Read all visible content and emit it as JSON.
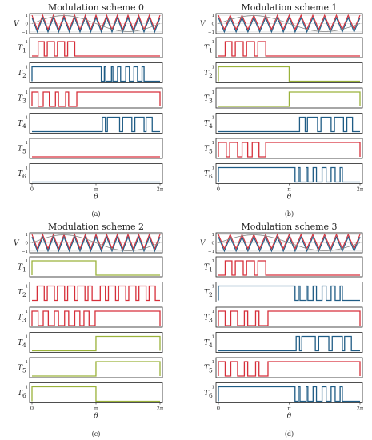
{
  "figure_captions": [
    "(a)",
    "(b)",
    "(c)",
    "(d)"
  ],
  "chart_data": [
    {
      "type": "line",
      "title": "Modulation scheme 0",
      "xlabel": "θ",
      "x_ticks": [
        "0",
        "π",
        "2π"
      ],
      "xlim": [
        0,
        6.283
      ],
      "v_ylabel": "V",
      "v_ticks": [
        "1",
        "0",
        "−1"
      ],
      "ylim": [
        -1.2,
        1.2
      ],
      "carrier_colors": [
        "#d62f3a",
        "#1f5c85"
      ],
      "signals": [
        {
          "label": "T1",
          "color": "#d62f3a",
          "type": "pwm",
          "pulses": [
            [
              0.3,
              0.6
            ],
            [
              0.75,
              1.1
            ],
            [
              1.25,
              1.6
            ],
            [
              1.75,
              2.1
            ]
          ]
        },
        {
          "label": "T2",
          "color": "#1f5c85",
          "type": "pwm",
          "pulses": [
            [
              0.0,
              3.4
            ],
            [
              3.55,
              3.62
            ],
            [
              3.9,
              3.97
            ],
            [
              4.2,
              4.35
            ],
            [
              4.6,
              4.78
            ],
            [
              5.0,
              5.18
            ],
            [
              5.4,
              5.5
            ]
          ]
        },
        {
          "label": "T3",
          "color": "#d62f3a",
          "type": "pwm",
          "pulses": [
            [
              0.0,
              0.3
            ],
            [
              0.55,
              0.85
            ],
            [
              1.15,
              1.3
            ],
            [
              1.65,
              1.8
            ],
            [
              2.2,
              6.283
            ]
          ]
        },
        {
          "label": "T4",
          "color": "#1f5c85",
          "type": "pwm",
          "pulses": [
            [
              3.45,
              3.6
            ],
            [
              3.7,
              4.3
            ],
            [
              4.45,
              4.9
            ],
            [
              5.05,
              5.5
            ],
            [
              5.6,
              5.9
            ]
          ]
        },
        {
          "label": "T5",
          "color": "#d62f3a",
          "type": "pwm",
          "pulses": []
        },
        {
          "label": "T6",
          "color": "#1f5c85",
          "type": "pwm",
          "pulses": []
        }
      ]
    },
    {
      "type": "line",
      "title": "Modulation scheme 1",
      "xlabel": "θ",
      "x_ticks": [
        "0",
        "π",
        "2π"
      ],
      "xlim": [
        0,
        6.283
      ],
      "v_ylabel": "V",
      "v_ticks": [
        "1",
        "0",
        "−1"
      ],
      "ylim": [
        -1.2,
        1.2
      ],
      "carrier_colors": [
        "#d62f3a",
        "#1f5c85"
      ],
      "signals": [
        {
          "label": "T1",
          "color": "#d62f3a",
          "type": "pwm",
          "pulses": [
            [
              0.3,
              0.6
            ],
            [
              0.75,
              1.1
            ],
            [
              1.25,
              1.6
            ],
            [
              1.75,
              2.1
            ]
          ]
        },
        {
          "label": "T2",
          "color": "#9ab23a",
          "type": "pwm",
          "pulses": [
            [
              0.0,
              3.14
            ]
          ]
        },
        {
          "label": "T3",
          "color": "#9ab23a",
          "type": "pwm",
          "pulses": [
            [
              3.14,
              6.283
            ]
          ]
        },
        {
          "label": "T4",
          "color": "#1f5c85",
          "type": "pwm",
          "pulses": [
            [
              3.6,
              3.85
            ],
            [
              3.95,
              4.4
            ],
            [
              4.55,
              5.0
            ],
            [
              5.15,
              5.55
            ],
            [
              5.7,
              5.95
            ]
          ]
        },
        {
          "label": "T5",
          "color": "#d62f3a",
          "type": "pwm",
          "pulses": [
            [
              0.0,
              0.35
            ],
            [
              0.5,
              0.85
            ],
            [
              1.05,
              1.3
            ],
            [
              1.5,
              1.8
            ],
            [
              2.1,
              6.283
            ]
          ]
        },
        {
          "label": "T6",
          "color": "#1f5c85",
          "type": "pwm",
          "pulses": [
            [
              0.0,
              3.4
            ],
            [
              3.55,
              3.62
            ],
            [
              3.9,
              3.97
            ],
            [
              4.2,
              4.35
            ],
            [
              4.6,
              4.78
            ],
            [
              5.0,
              5.18
            ],
            [
              5.4,
              5.5
            ]
          ]
        }
      ]
    },
    {
      "type": "line",
      "title": "Modulation scheme 2",
      "xlabel": "θ",
      "x_ticks": [
        "0",
        "π",
        "2π"
      ],
      "xlim": [
        0,
        6.283
      ],
      "v_ylabel": "V",
      "v_ticks": [
        "1",
        "0",
        "−1"
      ],
      "ylim": [
        -1.2,
        1.2
      ],
      "carrier_colors": [
        "#d62f3a",
        "#1f5c85"
      ],
      "signals": [
        {
          "label": "T1",
          "color": "#9ab23a",
          "type": "pwm",
          "pulses": [
            [
              0.0,
              3.14
            ]
          ]
        },
        {
          "label": "T2",
          "color": "#d62f3a",
          "type": "pwm",
          "pulses": [
            [
              0.25,
              0.6
            ],
            [
              0.75,
              1.1
            ],
            [
              1.25,
              1.6
            ],
            [
              1.75,
              2.1
            ],
            [
              2.25,
              2.6
            ],
            [
              2.75,
              2.95
            ],
            [
              3.35,
              3.6
            ],
            [
              3.75,
              4.1
            ],
            [
              4.25,
              4.6
            ],
            [
              4.75,
              5.1
            ],
            [
              5.25,
              5.6
            ],
            [
              5.75,
              6.05
            ]
          ]
        },
        {
          "label": "T3",
          "color": "#d62f3a",
          "type": "pwm",
          "pulses": [
            [
              0.0,
              0.3
            ],
            [
              0.55,
              0.8
            ],
            [
              1.1,
              1.3
            ],
            [
              1.6,
              1.8
            ],
            [
              2.1,
              2.35
            ],
            [
              2.55,
              2.8
            ],
            [
              3.1,
              6.283
            ]
          ]
        },
        {
          "label": "T4",
          "color": "#9ab23a",
          "type": "pwm",
          "pulses": [
            [
              3.14,
              6.283
            ]
          ]
        },
        {
          "label": "T5",
          "color": "#9ab23a",
          "type": "pwm",
          "pulses": [
            [
              3.14,
              6.283
            ]
          ]
        },
        {
          "label": "T6",
          "color": "#9ab23a",
          "type": "pwm",
          "pulses": [
            [
              0.0,
              3.14
            ]
          ]
        }
      ]
    },
    {
      "type": "line",
      "title": "Modulation scheme 3",
      "xlabel": "θ",
      "x_ticks": [
        "0",
        "π",
        "2π"
      ],
      "xlim": [
        0,
        6.283
      ],
      "v_ylabel": "V",
      "v_ticks": [
        "1",
        "0",
        "−1"
      ],
      "ylim": [
        -1.2,
        1.2
      ],
      "carrier_colors": [
        "#d62f3a",
        "#1f5c85"
      ],
      "signals": [
        {
          "label": "T1",
          "color": "#d62f3a",
          "type": "pwm",
          "pulses": [
            [
              0.3,
              0.6
            ],
            [
              0.75,
              1.1
            ],
            [
              1.25,
              1.6
            ],
            [
              1.75,
              2.1
            ]
          ]
        },
        {
          "label": "T2",
          "color": "#1f5c85",
          "type": "pwm",
          "pulses": [
            [
              0.0,
              3.4
            ],
            [
              3.55,
              3.62
            ],
            [
              3.9,
              3.97
            ],
            [
              4.2,
              4.35
            ],
            [
              4.6,
              4.78
            ],
            [
              5.0,
              5.18
            ],
            [
              5.4,
              5.5
            ]
          ]
        },
        {
          "label": "T3",
          "color": "#d62f3a",
          "type": "pwm",
          "pulses": [
            [
              0.0,
              0.3
            ],
            [
              0.55,
              0.85
            ],
            [
              1.15,
              1.3
            ],
            [
              1.65,
              1.8
            ],
            [
              2.2,
              6.283
            ]
          ]
        },
        {
          "label": "T4",
          "color": "#1f5c85",
          "type": "pwm",
          "pulses": [
            [
              3.45,
              3.6
            ],
            [
              3.7,
              4.3
            ],
            [
              4.45,
              4.9
            ],
            [
              5.05,
              5.5
            ],
            [
              5.6,
              5.9
            ]
          ]
        },
        {
          "label": "T5",
          "color": "#d62f3a",
          "type": "pwm",
          "pulses": [
            [
              0.0,
              0.3
            ],
            [
              0.55,
              0.85
            ],
            [
              1.15,
              1.3
            ],
            [
              1.65,
              1.8
            ],
            [
              2.2,
              6.283
            ]
          ]
        },
        {
          "label": "T6",
          "color": "#1f5c85",
          "type": "pwm",
          "pulses": [
            [
              0.0,
              3.4
            ],
            [
              3.55,
              3.62
            ],
            [
              3.9,
              3.97
            ],
            [
              4.2,
              4.35
            ],
            [
              4.6,
              4.78
            ],
            [
              5.0,
              5.18
            ],
            [
              5.4,
              5.5
            ]
          ]
        }
      ]
    }
  ]
}
